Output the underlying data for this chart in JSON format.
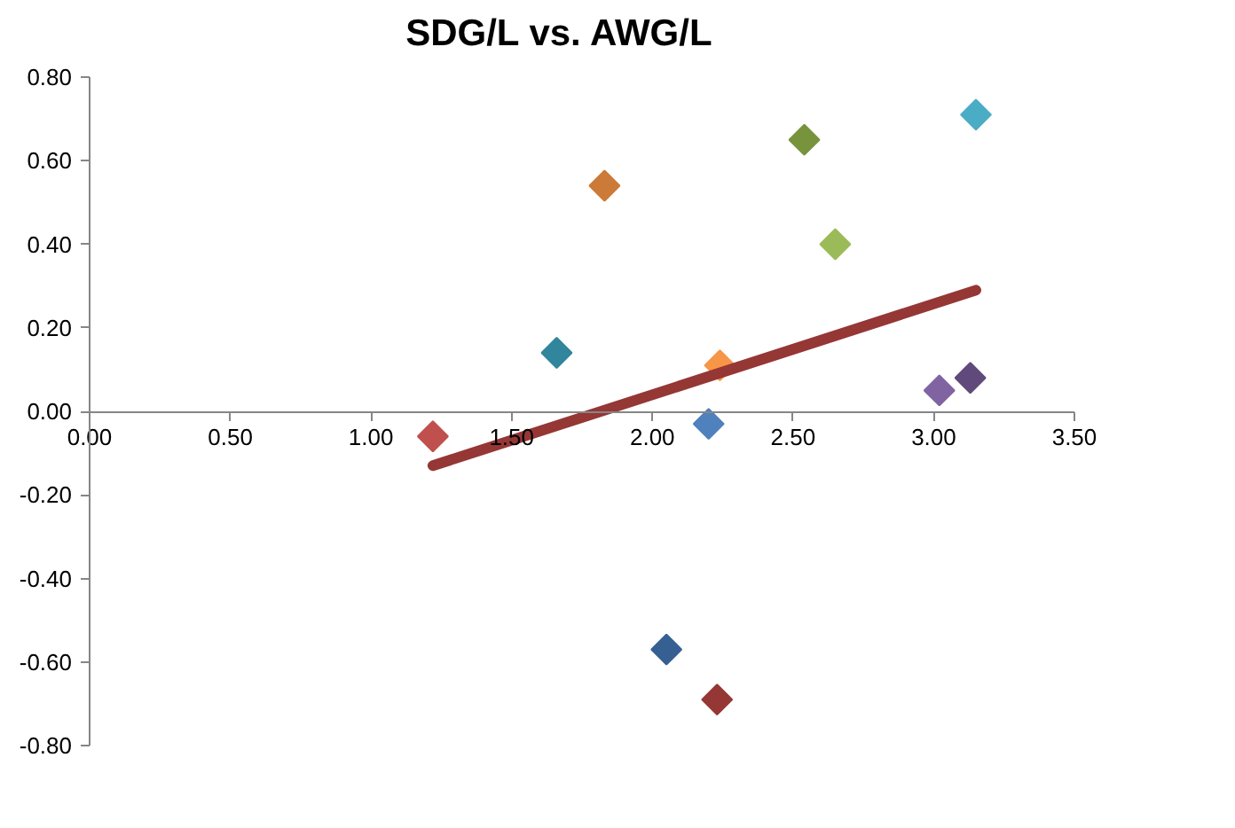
{
  "chart_data": {
    "type": "scatter",
    "title": "SDG/L vs. AWG/L",
    "series": [
      {
        "x": [
          1.22,
          1.66,
          1.83,
          2.2,
          2.24,
          2.54,
          2.65,
          3.15,
          3.02,
          3.13,
          2.05,
          2.23
        ],
        "values": [
          -0.06,
          0.14,
          0.54,
          -0.03,
          0.11,
          0.65,
          0.4,
          0.71,
          0.05,
          0.08,
          -0.57,
          -0.69
        ],
        "colors": [
          "#c0504d",
          "#31859c",
          "#cc7a37",
          "#4f81bd",
          "#f79646",
          "#77933c",
          "#9bbb59",
          "#4bacc6",
          "#8064a2",
          "#604a7b",
          "#376092",
          "#953735"
        ]
      },
      {
        "type": "line",
        "x": [
          1.22,
          3.15
        ],
        "values": [
          -0.13,
          0.29
        ],
        "color": "#953735",
        "marker": "none",
        "line_style": "solid"
      }
    ],
    "xlim": [
      0,
      3.5
    ],
    "xticks": [
      {
        "value": 0,
        "label": "0.00"
      },
      {
        "value": 0.5,
        "label": "0.50"
      },
      {
        "value": 1,
        "label": "1.00"
      },
      {
        "value": 1.5,
        "label": "1.50"
      },
      {
        "value": 2,
        "label": "2.00"
      },
      {
        "value": 2.5,
        "label": "2.50"
      },
      {
        "value": 3,
        "label": "3.00"
      },
      {
        "value": 3.5,
        "label": "3.50"
      }
    ],
    "ylim": [
      -0.8,
      0.8
    ],
    "yticks": [
      {
        "value": -0.8,
        "label": "-0.80"
      },
      {
        "value": -0.6,
        "label": "-0.60"
      },
      {
        "value": -0.4,
        "label": "-0.40"
      },
      {
        "value": -0.2,
        "label": "-0.20"
      },
      {
        "value": 0,
        "label": "0.00"
      },
      {
        "value": 0.2,
        "label": "0.20"
      },
      {
        "value": 0.4,
        "label": "0.40"
      },
      {
        "value": 0.6,
        "label": "0.60"
      },
      {
        "value": 0.8,
        "label": "0.80"
      }
    ],
    "grid": false,
    "marker": "diamond"
  }
}
